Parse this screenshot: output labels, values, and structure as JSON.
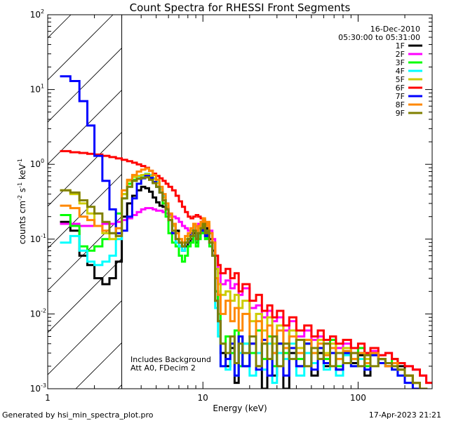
{
  "chart_data": {
    "type": "line",
    "title": "Count Spectra for RHESSI Front Segments",
    "xlabel": "Energy (keV)",
    "ylabel": "counts cm-2 s-1 keV-1",
    "ylabel_parts": {
      "base": "counts cm",
      "e1": "-2",
      "s": " s",
      "e2": "-1",
      "kev": " keV",
      "e3": "-1"
    },
    "xscale": "log",
    "yscale": "log",
    "xlim": [
      1,
      300
    ],
    "ylim": [
      0.001,
      100
    ],
    "x_ticks": [
      {
        "value": 1,
        "label": "1"
      },
      {
        "value": 10,
        "label": "10"
      },
      {
        "value": 100,
        "label": "100"
      }
    ],
    "y_ticks": [
      {
        "value": 0.001,
        "mant": "10",
        "exp": "-3"
      },
      {
        "value": 0.01,
        "mant": "10",
        "exp": "-2"
      },
      {
        "value": 0.1,
        "mant": "10",
        "exp": "-1"
      },
      {
        "value": 1,
        "mant": "10",
        "exp": "0"
      },
      {
        "value": 10,
        "mant": "10",
        "exp": "1"
      },
      {
        "value": 100,
        "mant": "10",
        "exp": "2"
      }
    ],
    "hatched_region_max": 3,
    "date": "16-Dec-2010",
    "time_range": "05:30:00 to 05:31:00",
    "annotation_lines": [
      "Includes Background",
      "Att A0, FDecim 2"
    ],
    "legend_position": "top-right",
    "energy_edges": [
      1.2,
      1.4,
      1.6,
      1.8,
      2.0,
      2.25,
      2.5,
      2.75,
      3.0,
      3.25,
      3.5,
      3.75,
      4.0,
      4.25,
      4.5,
      4.75,
      5.0,
      5.25,
      5.5,
      5.75,
      6.0,
      6.33,
      6.67,
      7.0,
      7.33,
      7.67,
      8.0,
      8.33,
      8.67,
      9.0,
      9.33,
      9.67,
      10.0,
      10.33,
      10.67,
      11.0,
      11.5,
      12.0,
      12.5,
      13.0,
      14.0,
      15.0,
      16.0,
      17.0,
      18.0,
      20.0,
      22.0,
      24.0,
      26.0,
      28.0,
      30.0,
      33.0,
      36.0,
      40.0,
      45.0,
      50.0,
      55.0,
      60.0,
      66.0,
      72.0,
      80.0,
      90.0,
      100.0,
      110.0,
      120.0,
      135.0,
      150.0,
      165.0,
      180.0,
      200.0,
      225.0,
      250.0,
      275.0,
      300.0
    ],
    "series": [
      {
        "name": "1F",
        "color": "#000000",
        "values": [
          0.17,
          0.13,
          0.06,
          0.045,
          0.03,
          0.025,
          0.03,
          0.05,
          0.2,
          0.3,
          0.38,
          0.45,
          0.5,
          0.48,
          0.43,
          0.36,
          0.31,
          0.28,
          0.27,
          0.26,
          0.2,
          0.16,
          0.13,
          0.08,
          0.07,
          0.08,
          0.09,
          0.1,
          0.12,
          0.09,
          0.12,
          0.14,
          0.15,
          0.12,
          0.14,
          0.1,
          0.07,
          0.02,
          0.008,
          0.003,
          0.002,
          0.0035,
          0.0012,
          0.005,
          0.002,
          0.004,
          0.002,
          0.001,
          0.005,
          0.0015,
          0.004,
          0.001,
          0.003,
          0.002,
          0.004,
          0.0015,
          0.003,
          0.002,
          0.0035,
          0.0018,
          0.003,
          0.0022,
          0.0028,
          0.0015,
          0.003,
          0.0025,
          0.002,
          0.0022,
          0.002,
          0.0015,
          0.0012,
          0.001,
          0.0008
        ]
      },
      {
        "name": "2F",
        "color": "#ff00ff",
        "values": [
          0.16,
          0.16,
          0.15,
          0.15,
          0.15,
          0.16,
          0.16,
          0.17,
          0.18,
          0.19,
          0.21,
          0.23,
          0.25,
          0.26,
          0.26,
          0.25,
          0.24,
          0.24,
          0.23,
          0.22,
          0.21,
          0.2,
          0.19,
          0.17,
          0.15,
          0.14,
          0.13,
          0.13,
          0.14,
          0.15,
          0.16,
          0.17,
          0.17,
          0.16,
          0.15,
          0.13,
          0.1,
          0.06,
          0.035,
          0.025,
          0.028,
          0.022,
          0.025,
          0.018,
          0.022,
          0.012,
          0.013,
          0.009,
          0.011,
          0.008,
          0.009,
          0.006,
          0.008,
          0.005,
          0.006,
          0.0045,
          0.005,
          0.004,
          0.0045,
          0.0035,
          0.004,
          0.003,
          0.0035,
          0.003,
          0.0032,
          0.0028,
          0.003,
          0.0025,
          0.0022,
          0.002,
          0.0018,
          0.0015,
          0.0012
        ]
      },
      {
        "name": "3F",
        "color": "#00ff00",
        "values": [
          0.21,
          0.15,
          0.08,
          0.07,
          0.08,
          0.1,
          0.12,
          0.22,
          0.4,
          0.55,
          0.62,
          0.65,
          0.68,
          0.7,
          0.66,
          0.58,
          0.5,
          0.42,
          0.3,
          0.2,
          0.12,
          0.09,
          0.08,
          0.06,
          0.05,
          0.06,
          0.08,
          0.09,
          0.11,
          0.08,
          0.1,
          0.12,
          0.14,
          0.1,
          0.12,
          0.08,
          0.06,
          0.02,
          0.01,
          0.004,
          0.005,
          0.003,
          0.006,
          0.002,
          0.004,
          0.003,
          0.006,
          0.0025,
          0.005,
          0.002,
          0.004,
          0.003,
          0.006,
          0.0025,
          0.004,
          0.003,
          0.0035,
          0.0025,
          0.0045,
          0.002,
          0.003,
          0.0025,
          0.0035,
          0.002,
          0.003,
          0.0025,
          0.0022,
          0.0025,
          0.0018,
          0.0015,
          0.0012,
          0.001,
          0.0009
        ]
      },
      {
        "name": "4F",
        "color": "#00ffff",
        "values": [
          0.09,
          0.11,
          0.07,
          0.05,
          0.045,
          0.05,
          0.06,
          0.1,
          0.35,
          0.5,
          0.6,
          0.65,
          0.7,
          0.75,
          0.72,
          0.65,
          0.58,
          0.48,
          0.38,
          0.28,
          0.2,
          0.13,
          0.09,
          0.08,
          0.07,
          0.09,
          0.1,
          0.12,
          0.14,
          0.11,
          0.12,
          0.13,
          0.15,
          0.12,
          0.13,
          0.09,
          0.06,
          0.012,
          0.005,
          0.002,
          0.0018,
          0.004,
          0.0015,
          0.003,
          0.004,
          0.0015,
          0.003,
          0.0018,
          0.004,
          0.0012,
          0.003,
          0.0025,
          0.004,
          0.0015,
          0.003,
          0.0022,
          0.0035,
          0.0018,
          0.003,
          0.0015,
          0.0028,
          0.002,
          0.0025,
          0.0018,
          0.0028,
          0.0022,
          0.002,
          0.0018,
          0.0015,
          0.0012,
          0.001,
          0.0009,
          0.0008
        ]
      },
      {
        "name": "5F",
        "color": "#cccc00",
        "values": [
          0.45,
          0.4,
          0.3,
          0.22,
          0.15,
          0.12,
          0.1,
          0.12,
          0.4,
          0.6,
          0.68,
          0.7,
          0.72,
          0.74,
          0.7,
          0.64,
          0.56,
          0.46,
          0.36,
          0.27,
          0.2,
          0.15,
          0.12,
          0.1,
          0.09,
          0.1,
          0.11,
          0.13,
          0.15,
          0.12,
          0.14,
          0.16,
          0.18,
          0.15,
          0.16,
          0.12,
          0.09,
          0.04,
          0.025,
          0.018,
          0.02,
          0.015,
          0.018,
          0.012,
          0.015,
          0.008,
          0.01,
          0.006,
          0.009,
          0.004,
          0.007,
          0.004,
          0.006,
          0.0035,
          0.0045,
          0.0035,
          0.0045,
          0.003,
          0.004,
          0.0025,
          0.0035,
          0.0025,
          0.003,
          0.0025,
          0.003,
          0.0022,
          0.002,
          0.0022,
          0.0018,
          0.0015,
          0.0012,
          0.001,
          0.0009
        ]
      },
      {
        "name": "6F",
        "color": "#ff0000",
        "values": [
          1.5,
          1.45,
          1.42,
          1.38,
          1.35,
          1.3,
          1.25,
          1.2,
          1.15,
          1.1,
          1.05,
          1.0,
          0.95,
          0.9,
          0.82,
          0.75,
          0.7,
          0.65,
          0.6,
          0.55,
          0.5,
          0.45,
          0.38,
          0.32,
          0.27,
          0.23,
          0.2,
          0.19,
          0.2,
          0.21,
          0.2,
          0.19,
          0.18,
          0.16,
          0.15,
          0.12,
          0.09,
          0.06,
          0.045,
          0.035,
          0.04,
          0.03,
          0.035,
          0.02,
          0.025,
          0.015,
          0.018,
          0.011,
          0.013,
          0.009,
          0.011,
          0.007,
          0.009,
          0.006,
          0.007,
          0.005,
          0.006,
          0.0045,
          0.005,
          0.004,
          0.0045,
          0.0035,
          0.004,
          0.003,
          0.0035,
          0.0028,
          0.003,
          0.0025,
          0.0022,
          0.002,
          0.0018,
          0.0015,
          0.0012
        ]
      },
      {
        "name": "7F",
        "color": "#0000ff",
        "values": [
          15.0,
          13.0,
          7.0,
          3.3,
          1.3,
          0.6,
          0.25,
          0.12,
          0.13,
          0.2,
          0.35,
          0.55,
          0.65,
          0.7,
          0.66,
          0.58,
          0.5,
          0.42,
          0.33,
          0.25,
          0.18,
          0.12,
          0.1,
          0.09,
          0.08,
          0.09,
          0.1,
          0.12,
          0.13,
          0.1,
          0.12,
          0.13,
          0.14,
          0.11,
          0.12,
          0.09,
          0.06,
          0.015,
          0.008,
          0.002,
          0.0025,
          0.004,
          0.0015,
          0.005,
          0.002,
          0.004,
          0.0018,
          0.0045,
          0.0015,
          0.003,
          0.004,
          0.0015,
          0.0035,
          0.002,
          0.004,
          0.0018,
          0.0035,
          0.0022,
          0.003,
          0.0018,
          0.003,
          0.002,
          0.003,
          0.0018,
          0.0028,
          0.0022,
          0.002,
          0.0018,
          0.0015,
          0.0012,
          0.001,
          0.0009,
          0.0008
        ]
      },
      {
        "name": "8F",
        "color": "#ff8800",
        "values": [
          0.28,
          0.26,
          0.2,
          0.18,
          0.15,
          0.13,
          0.12,
          0.14,
          0.45,
          0.62,
          0.72,
          0.8,
          0.85,
          0.88,
          0.82,
          0.72,
          0.62,
          0.5,
          0.4,
          0.3,
          0.22,
          0.16,
          0.12,
          0.1,
          0.09,
          0.11,
          0.12,
          0.14,
          0.16,
          0.13,
          0.15,
          0.17,
          0.19,
          0.15,
          0.17,
          0.12,
          0.09,
          0.03,
          0.018,
          0.01,
          0.015,
          0.008,
          0.012,
          0.006,
          0.01,
          0.005,
          0.008,
          0.004,
          0.007,
          0.003,
          0.006,
          0.0035,
          0.005,
          0.003,
          0.0045,
          0.003,
          0.004,
          0.0028,
          0.0035,
          0.0025,
          0.0032,
          0.0025,
          0.003,
          0.0022,
          0.003,
          0.0025,
          0.002,
          0.0022,
          0.0018,
          0.0015,
          0.0012,
          0.001,
          0.0009
        ]
      },
      {
        "name": "9F",
        "color": "#808000",
        "values": [
          0.45,
          0.42,
          0.33,
          0.27,
          0.22,
          0.17,
          0.12,
          0.11,
          0.35,
          0.5,
          0.6,
          0.64,
          0.66,
          0.67,
          0.62,
          0.56,
          0.5,
          0.42,
          0.33,
          0.25,
          0.18,
          0.13,
          0.1,
          0.09,
          0.08,
          0.09,
          0.1,
          0.11,
          0.13,
          0.1,
          0.12,
          0.14,
          0.16,
          0.12,
          0.13,
          0.09,
          0.06,
          0.015,
          0.008,
          0.004,
          0.003,
          0.005,
          0.0022,
          0.004,
          0.003,
          0.005,
          0.002,
          0.004,
          0.0025,
          0.005,
          0.002,
          0.004,
          0.0025,
          0.0045,
          0.002,
          0.0035,
          0.0025,
          0.004,
          0.002,
          0.003,
          0.0022,
          0.003,
          0.002,
          0.0028,
          0.002,
          0.0025,
          0.0022,
          0.002,
          0.0018,
          0.0015,
          0.0012,
          0.001,
          0.0009
        ]
      }
    ]
  },
  "footer": {
    "generated_by": "Generated by hsi_min_spectra_plot.pro",
    "timestamp": "17-Apr-2023 21:21"
  }
}
